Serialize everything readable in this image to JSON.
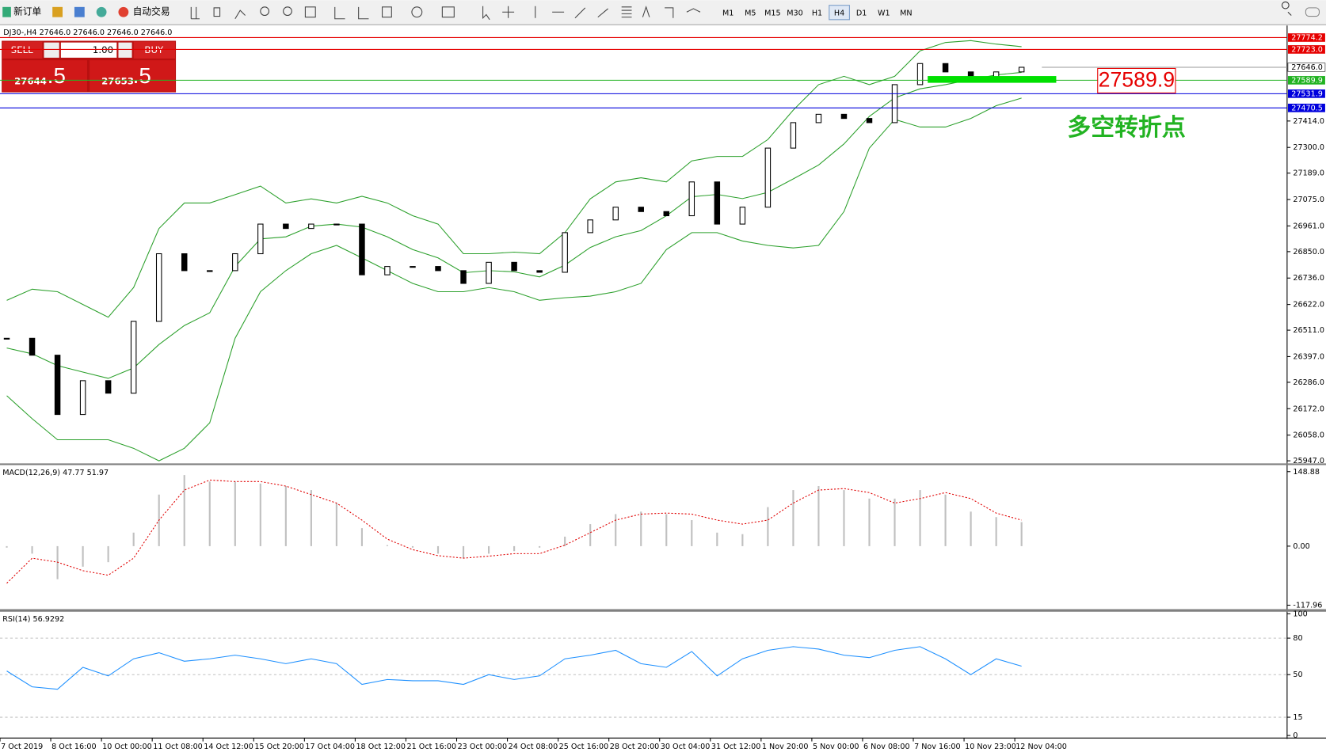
{
  "toolbar": {
    "buttons": [
      "新订单",
      "自动交易"
    ],
    "timeframes": [
      "M1",
      "M5",
      "M15",
      "M30",
      "H1",
      "H4",
      "D1",
      "W1",
      "MN"
    ],
    "active": "H4"
  },
  "trade": {
    "sell": "SELL",
    "buy": "BUY",
    "volume": "1.00",
    "sell_price": "27644",
    "sell_pips": ".5",
    "buy_price": "27653",
    "buy_pips": ".5"
  },
  "chart_data": [
    {
      "type": "candlestick",
      "title": "DJ30-,H4 27646.0 27646.0 27646.0 27646.0",
      "categories": [
        "7 Oct 2019",
        null,
        "8 Oct 16:00",
        null,
        "10 Oct 00:00",
        null,
        "11 Oct 08:00",
        null,
        "14 Oct 12:00",
        null,
        "15 Oct 20:00",
        null,
        "17 Oct 04:00",
        null,
        "18 Oct 12:00",
        null,
        "21 Oct 16:00",
        null,
        "23 Oct 00:00",
        null,
        "24 Oct 08:00",
        null,
        "25 Oct 16:00",
        null,
        "28 Oct 20:00",
        null,
        "30 Oct 04:00",
        null,
        "31 Oct 12:00",
        null,
        "1 Nov 20:00",
        null,
        "5 Nov 00:00",
        null,
        "6 Nov 08:00",
        null,
        "7 Nov 16:00",
        null,
        "10 Nov 23:00",
        null,
        "12 Nov 04:00"
      ],
      "values": [
        26476,
        26403,
        26147,
        26293,
        26239,
        26549,
        26841,
        26768,
        26768,
        26841,
        26969,
        26950,
        26969,
        26969,
        26750,
        26786,
        26786,
        26768,
        26713,
        26804,
        26768,
        26761,
        26932,
        26987,
        27042,
        27023,
        27005,
        27151,
        26969,
        27042,
        27297,
        27407,
        27443,
        27425,
        27407,
        27571,
        27662,
        27626,
        27589,
        27626,
        27646
      ],
      "bands": {
        "color": "#2ca02c",
        "upper": [
          26640,
          26688,
          26677,
          26622,
          26567,
          26695,
          26950,
          27060,
          27060,
          27096,
          27133,
          27060,
          27078,
          27060,
          27089,
          27060,
          27005,
          26969,
          26841,
          26841,
          26848,
          26841,
          26932,
          27078,
          27151,
          27169,
          27151,
          27242,
          27261,
          27261,
          27334,
          27461,
          27571,
          27607,
          27571,
          27607,
          27717,
          27753,
          27761,
          27746,
          27735
        ],
        "middle": [
          26434,
          26409,
          26358,
          26330,
          26303,
          26348,
          26449,
          26531,
          26586,
          26786,
          26905,
          26914,
          26960,
          26969,
          26956,
          26914,
          26859,
          26823,
          26759,
          26768,
          26763,
          26741,
          26792,
          26868,
          26914,
          26941,
          27005,
          27087,
          27097,
          27079,
          27106,
          27164,
          27224,
          27315,
          27434,
          27514,
          27553,
          27571,
          27593,
          27613,
          27624
        ],
        "lower": [
          26228,
          26129,
          26038,
          26038,
          26038,
          26001,
          25947,
          26001,
          26111,
          26476,
          26677,
          26768,
          26841,
          26877,
          26823,
          26768,
          26713,
          26677,
          26677,
          26695,
          26677,
          26640,
          26651,
          26658,
          26677,
          26713,
          26859,
          26932,
          26932,
          26896,
          26877,
          26866,
          26877,
          27023,
          27297,
          27421,
          27388,
          27388,
          27425,
          27480,
          27513
        ]
      },
      "ylim": [
        25936,
        27826
      ],
      "yticks": [
        {
          "value": 27414,
          "label": "27414.0"
        },
        {
          "value": 27300,
          "label": "27300.0"
        },
        {
          "value": 27189,
          "label": "27189.0"
        },
        {
          "value": 27075,
          "label": "27075.0"
        },
        {
          "value": 26961,
          "label": "26961.0"
        },
        {
          "value": 26850,
          "label": "26850.0"
        },
        {
          "value": 26736,
          "label": "26736.0"
        },
        {
          "value": 26622,
          "label": "26622.0"
        },
        {
          "value": 26511,
          "label": "26511.0"
        },
        {
          "value": 26397,
          "label": "26397.0"
        },
        {
          "value": 26286,
          "label": "26286.0"
        },
        {
          "value": 26172,
          "label": "26172.0"
        },
        {
          "value": 26058,
          "label": "26058.0"
        },
        {
          "value": 25947,
          "label": "25947.0"
        }
      ],
      "levels": [
        {
          "value": 27774.2,
          "label": "27774.2",
          "color": "#e60000"
        },
        {
          "value": 27723,
          "label": "27723.0",
          "color": "#e60000"
        },
        {
          "value": 27589.9,
          "label": "27589.9",
          "color": "#22b322"
        },
        {
          "value": 27531.9,
          "label": "27531.9",
          "color": "#0000dd"
        },
        {
          "value": 27470.5,
          "label": "27470.5",
          "color": "#0000dd"
        }
      ],
      "current": {
        "value": 27646,
        "label": "27646.0"
      },
      "annotation": {
        "value": 27589.9,
        "label": "27589.9",
        "color": "#e60000",
        "note": "多空转折点",
        "zone_color": "#00e000"
      }
    },
    {
      "type": "macd",
      "title": "MACD(12,26,9) 47.77 51.97",
      "values": [
        -3,
        -15,
        -66,
        -41,
        -32,
        27,
        103,
        142,
        129,
        129,
        125,
        120,
        112,
        86,
        36,
        2,
        -3,
        -15,
        -24,
        -15,
        -10,
        -3,
        19,
        44,
        64,
        69,
        64,
        52,
        27,
        24,
        78,
        112,
        120,
        112,
        95,
        95,
        112,
        103,
        69,
        58,
        48
      ],
      "signal": [
        -74,
        -24,
        -32,
        -49,
        -58,
        -24,
        52,
        112,
        132,
        129,
        129,
        120,
        103,
        86,
        52,
        14,
        -7,
        -19,
        -24,
        -20,
        -15,
        -15,
        2,
        27,
        52,
        64,
        66,
        64,
        52,
        44,
        52,
        86,
        112,
        115,
        107,
        86,
        95,
        107,
        95,
        66,
        52
      ],
      "color": "#c0c0c0",
      "signal_color": "#e00000",
      "ylim": [
        -125,
        162
      ],
      "yticks": [
        148.88,
        {
          "value": 0,
          "label": "0.00"
        },
        -117.96
      ]
    },
    {
      "type": "rsi",
      "title": "RSI(14) 56.9292",
      "values": [
        53,
        40,
        38,
        56,
        49,
        63,
        68,
        61,
        63,
        66,
        63,
        59,
        63,
        59,
        42,
        46,
        45,
        45,
        42,
        50,
        46,
        49,
        63,
        66,
        70,
        59,
        56,
        69,
        49,
        63,
        70,
        73,
        71,
        66,
        64,
        70,
        73,
        63,
        50,
        63,
        57
      ],
      "color": "#1e90ff",
      "ylim": [
        0,
        100
      ],
      "yticks": [
        100,
        80,
        50,
        15,
        0
      ]
    }
  ]
}
